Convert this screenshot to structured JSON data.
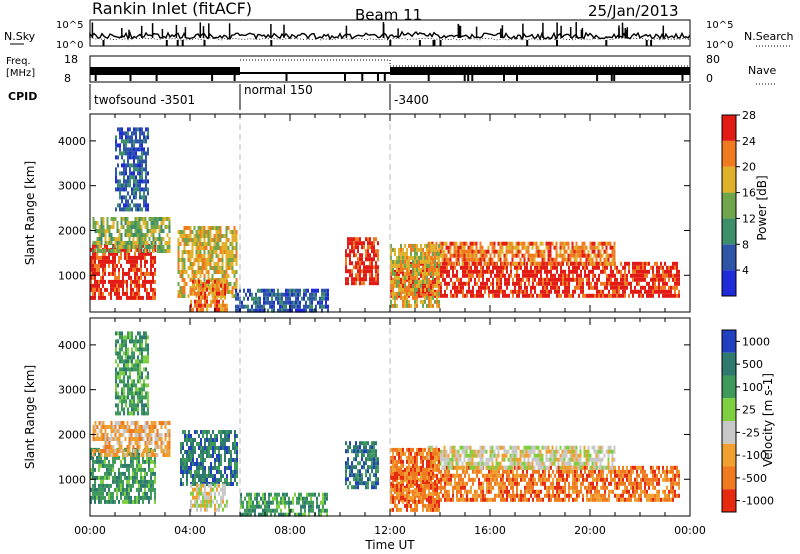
{
  "header": {
    "station": "Rankin Inlet (fitACF)",
    "beam": "Beam 11",
    "date": "25/Jan/2013"
  },
  "noise_panel": {
    "left_label": "N.Sky",
    "right_label": "N.Search",
    "ticks": [
      "10^5",
      "10^0"
    ]
  },
  "freq_panel": {
    "left_label_1": "Freq.",
    "left_label_2": "[MHz]",
    "right_label": "Nave",
    "left_ticks": [
      "18",
      "8"
    ],
    "right_ticks": [
      "80",
      "0"
    ]
  },
  "cpid": {
    "label": "CPID",
    "segments": [
      {
        "label": "twofsound -3501",
        "start_hour": 0
      },
      {
        "label": "normal 150",
        "start_hour": 6
      },
      {
        "label": "-3400",
        "start_hour": 12
      }
    ]
  },
  "chart_data": [
    {
      "type": "heatmap",
      "name": "power-panel",
      "ylabel": "Slant Range [km]",
      "ylim": [
        180,
        4600
      ],
      "xlim_hours": [
        0,
        24
      ],
      "y_ticks": [
        "1000",
        "2000",
        "3000",
        "4000"
      ],
      "colorbar_label": "Power [dB]",
      "colorbar_ticks": [
        "4",
        "8",
        "12",
        "16",
        "20",
        "24",
        "28"
      ],
      "colorbar_colors": [
        "#1f2bd9",
        "#2e55a8",
        "#3c8f6a",
        "#6fa54b",
        "#e0b12a",
        "#f07a1f",
        "#e21b14"
      ],
      "regions": [
        {
          "t0": 0.0,
          "t1": 2.6,
          "r0": 480,
          "r1": 1700,
          "level": 6
        },
        {
          "t0": 0.1,
          "t1": 3.2,
          "r0": 1500,
          "r1": 2300,
          "level": 3
        },
        {
          "t0": 1.0,
          "t1": 2.3,
          "r0": 2500,
          "r1": 4300,
          "level": 1
        },
        {
          "t0": 3.5,
          "t1": 5.9,
          "r0": 500,
          "r1": 2100,
          "level": 4
        },
        {
          "t0": 4.0,
          "t1": 5.5,
          "r0": 250,
          "r1": 900,
          "level": 5
        },
        {
          "t0": 5.8,
          "t1": 9.5,
          "r0": 200,
          "r1": 700,
          "level": 1
        },
        {
          "t0": 10.2,
          "t1": 11.5,
          "r0": 800,
          "r1": 1850,
          "level": 6
        },
        {
          "t0": 12.0,
          "t1": 23.6,
          "r0": 500,
          "r1": 1300,
          "level": 6
        },
        {
          "t0": 13.5,
          "t1": 21.0,
          "r0": 1250,
          "r1": 1750,
          "level": 5
        },
        {
          "t0": 12.0,
          "t1": 14.0,
          "r0": 300,
          "r1": 1700,
          "level": 4
        }
      ]
    },
    {
      "type": "heatmap",
      "name": "velocity-panel",
      "ylabel": "Slant Range [km]",
      "xlabel": "Time UT",
      "ylim": [
        180,
        4600
      ],
      "xlim_hours": [
        0,
        24
      ],
      "y_ticks": [
        "1000",
        "2000",
        "3000",
        "4000"
      ],
      "x_ticks": [
        "00:00",
        "04:00",
        "08:00",
        "12:00",
        "16:00",
        "20:00",
        "00:00"
      ],
      "colorbar_label": "Velocity [m s-1]",
      "colorbar_ticks": [
        "1000",
        "500",
        "100",
        "25",
        "-25",
        "-100",
        "-500",
        "-1000"
      ],
      "colorbar_colors": [
        "#2040c0",
        "#2f7a6e",
        "#3e9a5a",
        "#7fd040",
        "#c8c8c8",
        "#f0a030",
        "#f07a1f",
        "#e62a10"
      ],
      "regions": [
        {
          "t0": 0.0,
          "t1": 2.6,
          "r0": 450,
          "r1": 1700,
          "level": 2
        },
        {
          "t0": 0.1,
          "t1": 3.2,
          "r0": 1500,
          "r1": 2300,
          "level": 5
        },
        {
          "t0": 1.0,
          "t1": 2.3,
          "r0": 2500,
          "r1": 4300,
          "level": 2
        },
        {
          "t0": 3.6,
          "t1": 5.9,
          "r0": 900,
          "r1": 2100,
          "level": 1
        },
        {
          "t0": 4.0,
          "t1": 5.5,
          "r0": 350,
          "r1": 900,
          "level": 4
        },
        {
          "t0": 6.0,
          "t1": 9.5,
          "r0": 200,
          "r1": 700,
          "level": 2
        },
        {
          "t0": 10.2,
          "t1": 11.5,
          "r0": 800,
          "r1": 1850,
          "level": 1
        },
        {
          "t0": 12.0,
          "t1": 23.6,
          "r0": 500,
          "r1": 1300,
          "level": 6
        },
        {
          "t0": 13.5,
          "t1": 21.0,
          "r0": 1250,
          "r1": 1750,
          "level": 4
        },
        {
          "t0": 12.0,
          "t1": 14.0,
          "r0": 300,
          "r1": 1700,
          "level": 6
        }
      ]
    }
  ]
}
